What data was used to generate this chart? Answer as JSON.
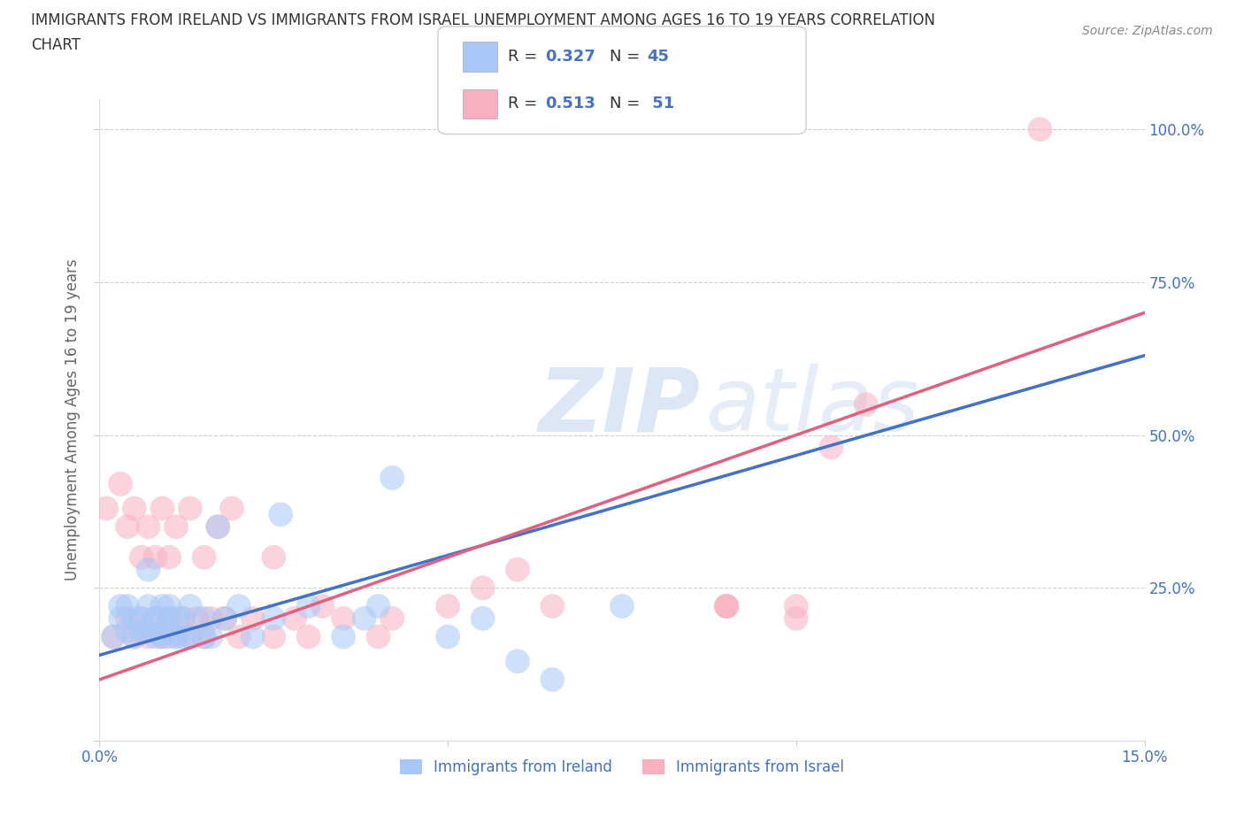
{
  "title_line1": "IMMIGRANTS FROM IRELAND VS IMMIGRANTS FROM ISRAEL UNEMPLOYMENT AMONG AGES 16 TO 19 YEARS CORRELATION",
  "title_line2": "CHART",
  "source": "Source: ZipAtlas.com",
  "ylabel": "Unemployment Among Ages 16 to 19 years",
  "xlim": [
    0.0,
    0.15
  ],
  "ylim": [
    0.0,
    1.05
  ],
  "ireland_color": "#a8c8f8",
  "israel_color": "#f8b0c0",
  "ireland_line_color": "#4472c4",
  "israel_line_color": "#e06080",
  "ireland_R": 0.327,
  "ireland_N": 45,
  "israel_R": 0.513,
  "israel_N": 51,
  "legend_label_ireland": "Immigrants from Ireland",
  "legend_label_israel": "Immigrants from Israel",
  "ireland_scatter_x": [
    0.002,
    0.003,
    0.003,
    0.004,
    0.004,
    0.005,
    0.005,
    0.006,
    0.006,
    0.007,
    0.007,
    0.007,
    0.008,
    0.008,
    0.009,
    0.009,
    0.009,
    0.01,
    0.01,
    0.01,
    0.011,
    0.011,
    0.012,
    0.012,
    0.013,
    0.013,
    0.015,
    0.015,
    0.016,
    0.017,
    0.018,
    0.02,
    0.022,
    0.025,
    0.026,
    0.03,
    0.035,
    0.038,
    0.04,
    0.042,
    0.05,
    0.055,
    0.06,
    0.065,
    0.075
  ],
  "ireland_scatter_y": [
    0.17,
    0.2,
    0.22,
    0.18,
    0.22,
    0.17,
    0.2,
    0.18,
    0.2,
    0.18,
    0.22,
    0.28,
    0.17,
    0.2,
    0.17,
    0.2,
    0.22,
    0.17,
    0.2,
    0.22,
    0.17,
    0.2,
    0.17,
    0.2,
    0.17,
    0.22,
    0.17,
    0.2,
    0.17,
    0.35,
    0.2,
    0.22,
    0.17,
    0.2,
    0.37,
    0.22,
    0.17,
    0.2,
    0.22,
    0.43,
    0.17,
    0.2,
    0.13,
    0.1,
    0.22
  ],
  "israel_scatter_x": [
    0.001,
    0.002,
    0.003,
    0.004,
    0.004,
    0.005,
    0.005,
    0.006,
    0.006,
    0.007,
    0.007,
    0.008,
    0.008,
    0.009,
    0.009,
    0.01,
    0.01,
    0.011,
    0.011,
    0.012,
    0.013,
    0.013,
    0.014,
    0.015,
    0.015,
    0.016,
    0.017,
    0.018,
    0.019,
    0.02,
    0.022,
    0.025,
    0.025,
    0.028,
    0.03,
    0.032,
    0.035,
    0.04,
    0.042,
    0.05,
    0.055,
    0.06,
    0.065,
    0.09,
    0.09,
    0.09,
    0.1,
    0.1,
    0.105,
    0.11,
    0.135
  ],
  "israel_scatter_y": [
    0.38,
    0.17,
    0.42,
    0.2,
    0.35,
    0.17,
    0.38,
    0.2,
    0.3,
    0.17,
    0.35,
    0.2,
    0.3,
    0.17,
    0.38,
    0.2,
    0.3,
    0.17,
    0.35,
    0.2,
    0.17,
    0.38,
    0.2,
    0.17,
    0.3,
    0.2,
    0.35,
    0.2,
    0.38,
    0.17,
    0.2,
    0.17,
    0.3,
    0.2,
    0.17,
    0.22,
    0.2,
    0.17,
    0.2,
    0.22,
    0.25,
    0.28,
    0.22,
    0.22,
    0.22,
    0.22,
    0.2,
    0.22,
    0.48,
    0.55,
    1.0
  ],
  "ireland_trend_x": [
    0.0,
    0.15
  ],
  "ireland_trend_y": [
    0.14,
    0.63
  ],
  "israel_trend_x": [
    0.0,
    0.15
  ],
  "israel_trend_y": [
    0.1,
    0.7
  ],
  "grid_color": "#d0d0d0",
  "background_color": "#ffffff",
  "title_color": "#333333",
  "axis_label_color": "#666666",
  "tick_color": "#4472c4",
  "watermark_color_zip": "#c5d8f0",
  "watermark_color_atlas": "#c5d8f0"
}
